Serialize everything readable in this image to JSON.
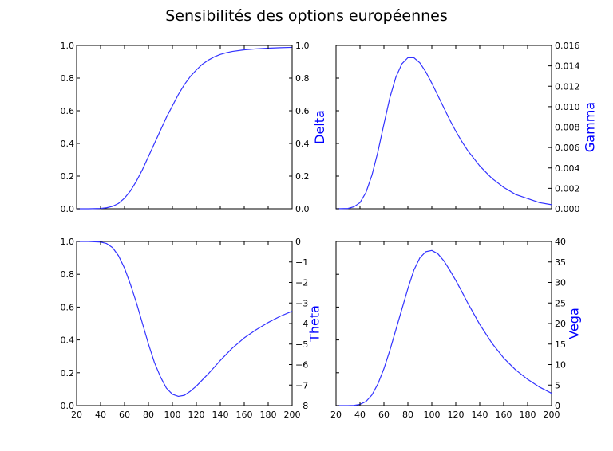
{
  "title": "Sensibilités des options européennes",
  "colors": {
    "line": "#3333ff",
    "label": "#0000ff",
    "axes": "#000000",
    "background": "#ffffff"
  },
  "chart_data": [
    {
      "type": "line",
      "id": "delta",
      "xlim": [
        20,
        200
      ],
      "x_tick_labels_shown": false,
      "left_axis": {
        "ylim": [
          0,
          1
        ],
        "ticks": [
          "0.0",
          "0.2",
          "0.4",
          "0.6",
          "0.8",
          "1.0"
        ]
      },
      "right_axis": {
        "label": "Delta",
        "ylim": [
          0,
          1
        ],
        "ticks": [
          "0.0",
          "0.2",
          "0.4",
          "0.6",
          "0.8",
          "1.0"
        ]
      },
      "series": [
        {
          "axis": "right",
          "x": [
            20,
            30,
            40,
            45,
            50,
            55,
            60,
            65,
            70,
            75,
            80,
            85,
            90,
            95,
            100,
            105,
            110,
            115,
            120,
            125,
            130,
            135,
            140,
            145,
            150,
            160,
            170,
            180,
            190,
            200
          ],
          "y": [
            0.0,
            0.0,
            0.002,
            0.006,
            0.015,
            0.033,
            0.065,
            0.11,
            0.17,
            0.24,
            0.32,
            0.4,
            0.48,
            0.56,
            0.63,
            0.7,
            0.76,
            0.81,
            0.85,
            0.885,
            0.91,
            0.93,
            0.945,
            0.955,
            0.963,
            0.973,
            0.979,
            0.983,
            0.986,
            0.988
          ]
        }
      ]
    },
    {
      "type": "line",
      "id": "gamma",
      "xlim": [
        20,
        200
      ],
      "x_tick_labels_shown": false,
      "left_axis": {
        "ylim": [
          0,
          1
        ],
        "ticks": []
      },
      "right_axis": {
        "label": "Gamma",
        "ylim": [
          0,
          0.016
        ],
        "ticks": [
          "0.000",
          "0.002",
          "0.004",
          "0.006",
          "0.008",
          "0.010",
          "0.012",
          "0.014",
          "0.016"
        ]
      },
      "series": [
        {
          "axis": "right",
          "x": [
            20,
            30,
            35,
            40,
            45,
            50,
            55,
            60,
            65,
            70,
            75,
            80,
            85,
            90,
            95,
            100,
            105,
            110,
            115,
            120,
            125,
            130,
            140,
            150,
            160,
            170,
            180,
            190,
            200
          ],
          "y": [
            0.0,
            3e-05,
            0.0002,
            0.0006,
            0.0016,
            0.0033,
            0.0056,
            0.0083,
            0.0109,
            0.0129,
            0.0142,
            0.0148,
            0.0148,
            0.0143,
            0.0134,
            0.0123,
            0.0111,
            0.0099,
            0.0087,
            0.0076,
            0.0066,
            0.0057,
            0.0042,
            0.003,
            0.0021,
            0.0014,
            0.001,
            0.0006,
            0.0004
          ]
        }
      ]
    },
    {
      "type": "line",
      "id": "theta",
      "xlim": [
        20,
        200
      ],
      "x_ticks": [
        "20",
        "40",
        "60",
        "80",
        "100",
        "120",
        "140",
        "160",
        "180",
        "200"
      ],
      "left_axis": {
        "ylim": [
          0,
          1
        ],
        "ticks": [
          "0.0",
          "0.2",
          "0.4",
          "0.6",
          "0.8",
          "1.0"
        ]
      },
      "right_axis": {
        "label": "Theta",
        "ylim": [
          -8,
          0
        ],
        "ticks": [
          "−8",
          "−7",
          "−6",
          "−5",
          "−4",
          "−3",
          "−2",
          "−1",
          "0"
        ]
      },
      "series": [
        {
          "axis": "right",
          "x": [
            20,
            30,
            40,
            45,
            50,
            55,
            60,
            65,
            70,
            75,
            80,
            85,
            90,
            95,
            100,
            105,
            110,
            115,
            120,
            125,
            130,
            140,
            150,
            160,
            170,
            180,
            190,
            200
          ],
          "y": [
            0.0,
            0.0,
            -0.03,
            -0.1,
            -0.3,
            -0.7,
            -1.3,
            -2.1,
            -3.0,
            -4.0,
            -5.0,
            -5.9,
            -6.6,
            -7.15,
            -7.45,
            -7.55,
            -7.5,
            -7.3,
            -7.05,
            -6.75,
            -6.45,
            -5.8,
            -5.2,
            -4.7,
            -4.3,
            -3.95,
            -3.65,
            -3.4
          ]
        }
      ]
    },
    {
      "type": "line",
      "id": "vega",
      "xlim": [
        20,
        200
      ],
      "x_ticks": [
        "20",
        "40",
        "60",
        "80",
        "100",
        "120",
        "140",
        "160",
        "180",
        "200"
      ],
      "left_axis": {
        "ylim": [
          0,
          1
        ],
        "ticks": []
      },
      "right_axis": {
        "label": "Vega",
        "ylim": [
          0,
          40
        ],
        "ticks": [
          "0",
          "5",
          "10",
          "15",
          "20",
          "25",
          "30",
          "35",
          "40"
        ]
      },
      "series": [
        {
          "axis": "right",
          "x": [
            20,
            30,
            35,
            40,
            45,
            50,
            55,
            60,
            65,
            70,
            75,
            80,
            85,
            90,
            95,
            100,
            105,
            110,
            115,
            120,
            125,
            130,
            140,
            150,
            160,
            170,
            180,
            190,
            200
          ],
          "y": [
            0.0,
            0.0,
            0.05,
            0.3,
            1.0,
            2.6,
            5.3,
            9.0,
            13.5,
            18.5,
            23.5,
            28.5,
            33.0,
            36.0,
            37.5,
            37.8,
            37.0,
            35.3,
            33.0,
            30.5,
            27.8,
            25.0,
            19.8,
            15.3,
            11.6,
            8.7,
            6.4,
            4.5,
            3.0
          ]
        }
      ]
    }
  ]
}
